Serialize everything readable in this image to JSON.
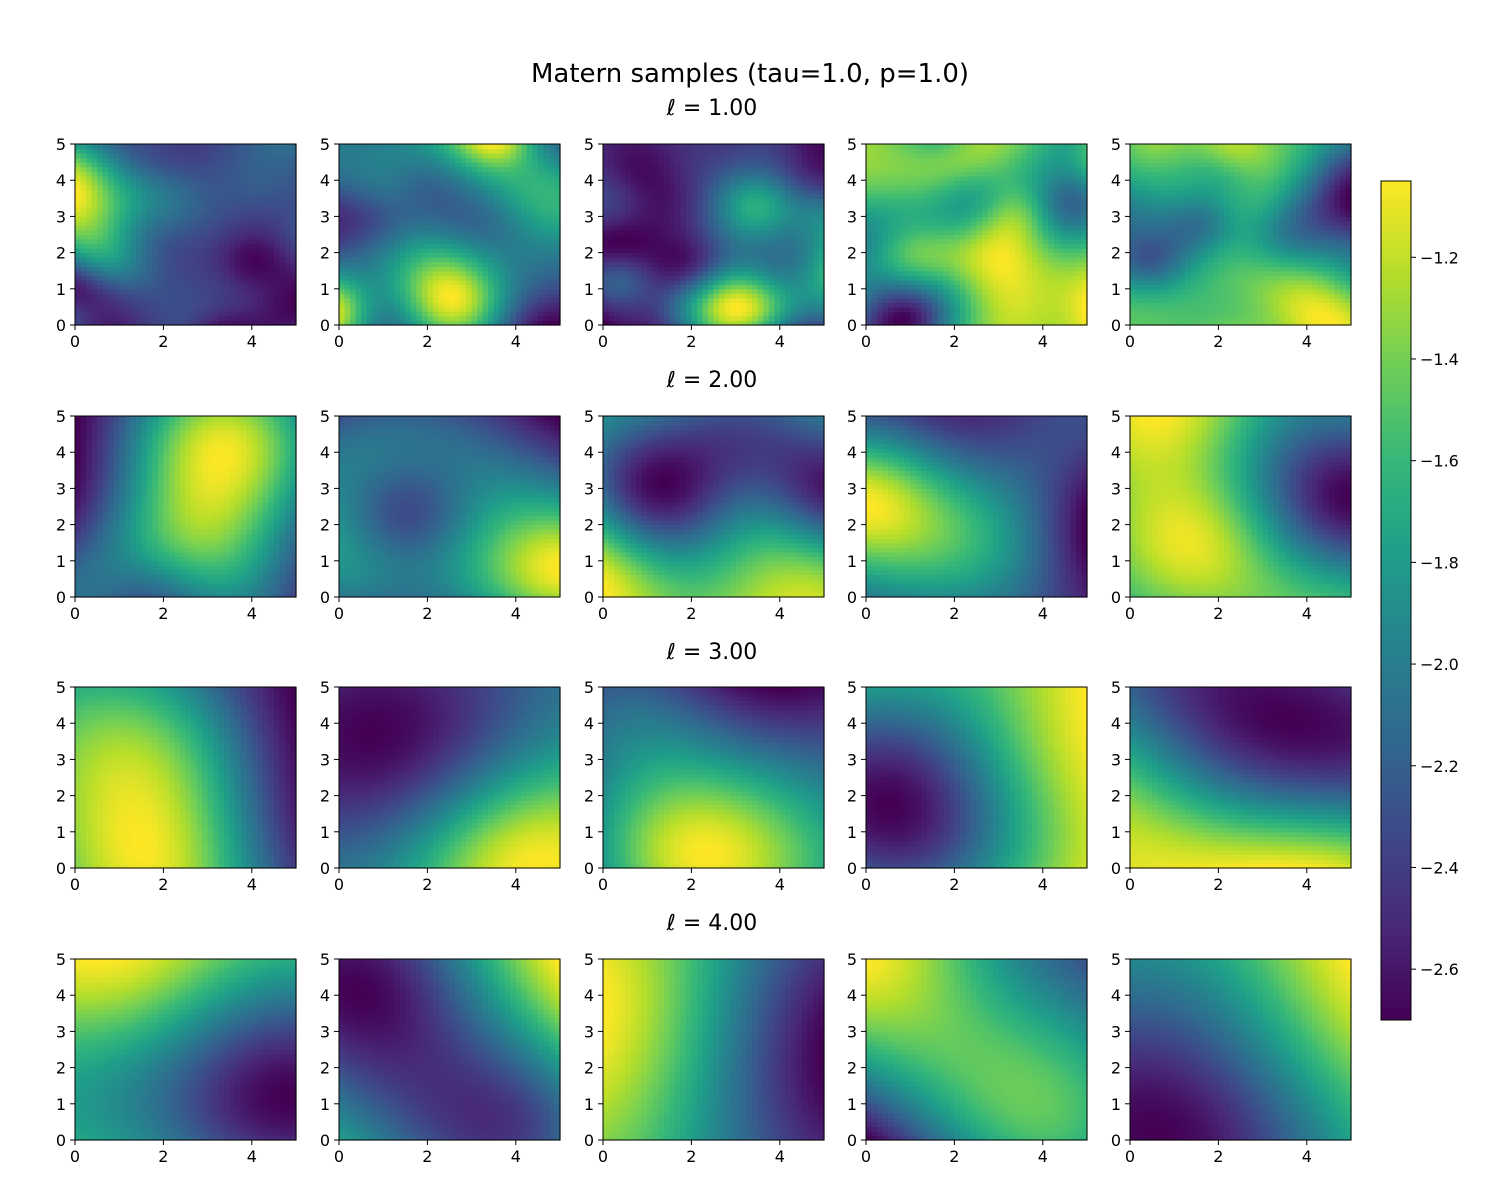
{
  "chart_data": {
    "type": "heatmap",
    "title": "Matern samples (tau=1.0, p=1.0)",
    "rows": [
      {
        "label": "ℓ = 1.00",
        "length_scale": 1.0
      },
      {
        "label": "ℓ = 2.00",
        "length_scale": 2.0
      },
      {
        "label": "ℓ = 3.00",
        "length_scale": 3.0
      },
      {
        "label": "ℓ = 4.00",
        "length_scale": 4.0
      }
    ],
    "samples_per_row": 5,
    "xlim": [
      0,
      5
    ],
    "ylim": [
      0,
      5
    ],
    "x_ticks": [
      "0",
      "2",
      "4"
    ],
    "y_ticks": [
      "0",
      "1",
      "2",
      "3",
      "4",
      "5"
    ],
    "colormap": "viridis",
    "colorbar": {
      "range": [
        -2.7,
        -1.05
      ],
      "ticks": [
        "−1.2",
        "−1.4",
        "−1.6",
        "−1.8",
        "−2.0",
        "−2.2",
        "−2.4",
        "−2.6"
      ],
      "tick_values": [
        -1.2,
        -1.4,
        -1.6,
        -1.8,
        -2.0,
        -2.2,
        -2.4,
        -2.6
      ]
    }
  }
}
